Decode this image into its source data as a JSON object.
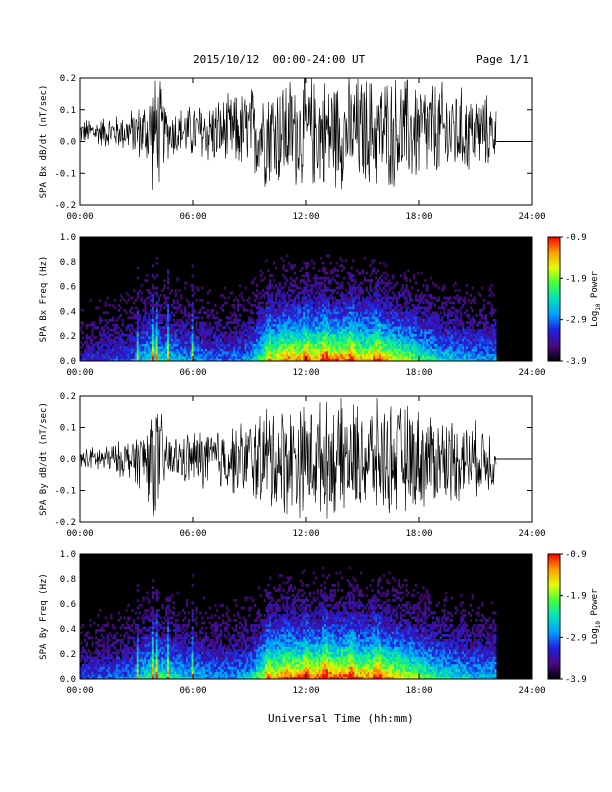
{
  "header": {
    "date_range": "2015/10/12  00:00-24:00 UT",
    "page": "Page 1/1"
  },
  "footer": {
    "xlabel": "Universal Time (hh:mm)"
  },
  "colors": {
    "trace": "#000000",
    "no_data": "#000000",
    "colormap": [
      "#000000",
      "#4b0a82",
      "#2020e0",
      "#00a0ff",
      "#00e0c0",
      "#40ff40",
      "#e0ff00",
      "#ffa000",
      "#ff0000"
    ]
  },
  "chart_data": [
    {
      "type": "line",
      "id": "bx_timeseries",
      "ylabel": "SPA Bx dB/dt (nT/sec)",
      "ylim": [
        -0.2,
        0.2
      ],
      "yticks": [
        "0.2",
        "0.1",
        "0.0",
        "-0.1",
        "-0.2"
      ],
      "yticks_values": [
        0.2,
        0.1,
        0.0,
        -0.1,
        -0.2
      ],
      "xlim_hours": [
        0,
        24
      ],
      "xticks": [
        "00:00",
        "06:00",
        "12:00",
        "18:00",
        "24:00"
      ],
      "data_end_hour": 22.1,
      "flat_value_after_end": 0.0,
      "envelope": {
        "hours": [
          0,
          0.5,
          1,
          1.5,
          2,
          2.5,
          3,
          3.5,
          3.8,
          4.2,
          4.5,
          5,
          5.5,
          6,
          6.5,
          7,
          7.5,
          8,
          8.5,
          9,
          9.5,
          10,
          10.5,
          11,
          12,
          13,
          14,
          15,
          16,
          17,
          18,
          19,
          20,
          21,
          21.5,
          22,
          22.1
        ],
        "amplitude": [
          0.04,
          0.05,
          0.05,
          0.06,
          0.06,
          0.07,
          0.09,
          0.12,
          0.2,
          0.2,
          0.1,
          0.09,
          0.09,
          0.1,
          0.11,
          0.12,
          0.12,
          0.13,
          0.14,
          0.16,
          0.18,
          0.2,
          0.2,
          0.2,
          0.2,
          0.2,
          0.2,
          0.2,
          0.2,
          0.2,
          0.19,
          0.18,
          0.16,
          0.14,
          0.13,
          0.12,
          0.08
        ]
      },
      "offset": 0.03
    },
    {
      "type": "heatmap",
      "id": "bx_spectrogram",
      "ylabel": "SPA Bx Freq (Hz)",
      "ylim": [
        0.0,
        1.0
      ],
      "yticks": [
        "1.0",
        "0.8",
        "0.6",
        "0.4",
        "0.2",
        "0.0"
      ],
      "yticks_values": [
        1.0,
        0.8,
        0.6,
        0.4,
        0.2,
        0.0
      ],
      "xlim_hours": [
        0,
        24
      ],
      "xticks": [
        "00:00",
        "06:00",
        "12:00",
        "18:00",
        "24:00"
      ],
      "data_end_hour": 22.1,
      "colorbar": {
        "label": "Log10 Power",
        "label_main": "Log",
        "label_sub": "10",
        "label_tail": " Power",
        "range": [
          -3.9,
          -0.9
        ],
        "ticks": [
          "-0.9",
          "-1.9",
          "-2.9",
          "-3.9"
        ],
        "ticks_values": [
          -0.9,
          -1.9,
          -2.9,
          -3.9
        ]
      },
      "activity_hours": [
        0,
        2,
        3,
        3.5,
        4,
        5,
        6,
        7,
        8,
        9,
        10,
        11,
        12,
        13,
        14,
        15,
        16,
        17,
        18,
        19,
        20,
        21,
        22
      ],
      "activity_level": [
        0.25,
        0.3,
        0.35,
        0.5,
        0.55,
        0.45,
        0.4,
        0.35,
        0.35,
        0.4,
        0.7,
        0.85,
        0.8,
        0.85,
        0.85,
        0.8,
        0.8,
        0.7,
        0.6,
        0.5,
        0.45,
        0.4,
        0.4
      ],
      "pulse_lines_hours": [
        3.05,
        3.85,
        4.1,
        4.7,
        5.95
      ],
      "storm_bands_hours": [
        10.0,
        12.0,
        13.0,
        14.4,
        15.8
      ]
    },
    {
      "type": "line",
      "id": "by_timeseries",
      "ylabel": "SPA By dB/dt (nT/sec)",
      "ylim": [
        -0.2,
        0.2
      ],
      "yticks": [
        "0.2",
        "0.1",
        "0.0",
        "-0.1",
        "-0.2"
      ],
      "yticks_values": [
        0.2,
        0.1,
        0.0,
        -0.1,
        -0.2
      ],
      "xlim_hours": [
        0,
        24
      ],
      "xticks": [
        "00:00",
        "06:00",
        "12:00",
        "18:00",
        "24:00"
      ],
      "data_end_hour": 22.1,
      "flat_value_after_end": 0.0,
      "envelope": {
        "hours": [
          0,
          0.5,
          1,
          1.5,
          2,
          2.5,
          3,
          3.5,
          3.8,
          4.2,
          4.5,
          5,
          5.5,
          6,
          6.5,
          7,
          7.5,
          8,
          8.5,
          9,
          9.5,
          10,
          10.5,
          11,
          12,
          13,
          14,
          15,
          16,
          17,
          18,
          19,
          20,
          21,
          21.5,
          22,
          22.1
        ],
        "amplitude": [
          0.04,
          0.04,
          0.05,
          0.05,
          0.06,
          0.07,
          0.09,
          0.13,
          0.2,
          0.2,
          0.1,
          0.08,
          0.09,
          0.1,
          0.11,
          0.11,
          0.12,
          0.12,
          0.13,
          0.15,
          0.17,
          0.2,
          0.2,
          0.2,
          0.2,
          0.2,
          0.2,
          0.2,
          0.2,
          0.2,
          0.18,
          0.16,
          0.15,
          0.13,
          0.12,
          0.12,
          0.08
        ]
      },
      "offset": 0.0
    },
    {
      "type": "heatmap",
      "id": "by_spectrogram",
      "ylabel": "SPA By Freq (Hz)",
      "ylim": [
        0.0,
        1.0
      ],
      "yticks": [
        "1.0",
        "0.8",
        "0.6",
        "0.4",
        "0.2",
        "0.0"
      ],
      "yticks_values": [
        1.0,
        0.8,
        0.6,
        0.4,
        0.2,
        0.0
      ],
      "xlim_hours": [
        0,
        24
      ],
      "xticks": [
        "00:00",
        "06:00",
        "12:00",
        "18:00",
        "24:00"
      ],
      "data_end_hour": 22.1,
      "colorbar": {
        "label": "Log10 Power",
        "label_main": "Log",
        "label_sub": "10",
        "label_tail": " Power",
        "range": [
          -3.9,
          -0.9
        ],
        "ticks": [
          "-0.9",
          "-1.9",
          "-2.9",
          "-3.9"
        ],
        "ticks_values": [
          -0.9,
          -1.9,
          -2.9,
          -3.9
        ]
      },
      "activity_hours": [
        0,
        2,
        3,
        3.5,
        4,
        5,
        6,
        7,
        8,
        9,
        10,
        11,
        12,
        13,
        14,
        15,
        16,
        17,
        18,
        19,
        20,
        21,
        22
      ],
      "activity_level": [
        0.3,
        0.35,
        0.4,
        0.55,
        0.6,
        0.5,
        0.45,
        0.4,
        0.4,
        0.45,
        0.75,
        0.9,
        0.85,
        0.9,
        0.9,
        0.85,
        0.85,
        0.75,
        0.65,
        0.55,
        0.5,
        0.45,
        0.45
      ],
      "pulse_lines_hours": [
        3.05,
        3.85,
        4.1,
        4.7,
        5.95
      ],
      "storm_bands_hours": [
        10.0,
        12.0,
        13.0,
        14.4,
        15.8
      ]
    }
  ]
}
